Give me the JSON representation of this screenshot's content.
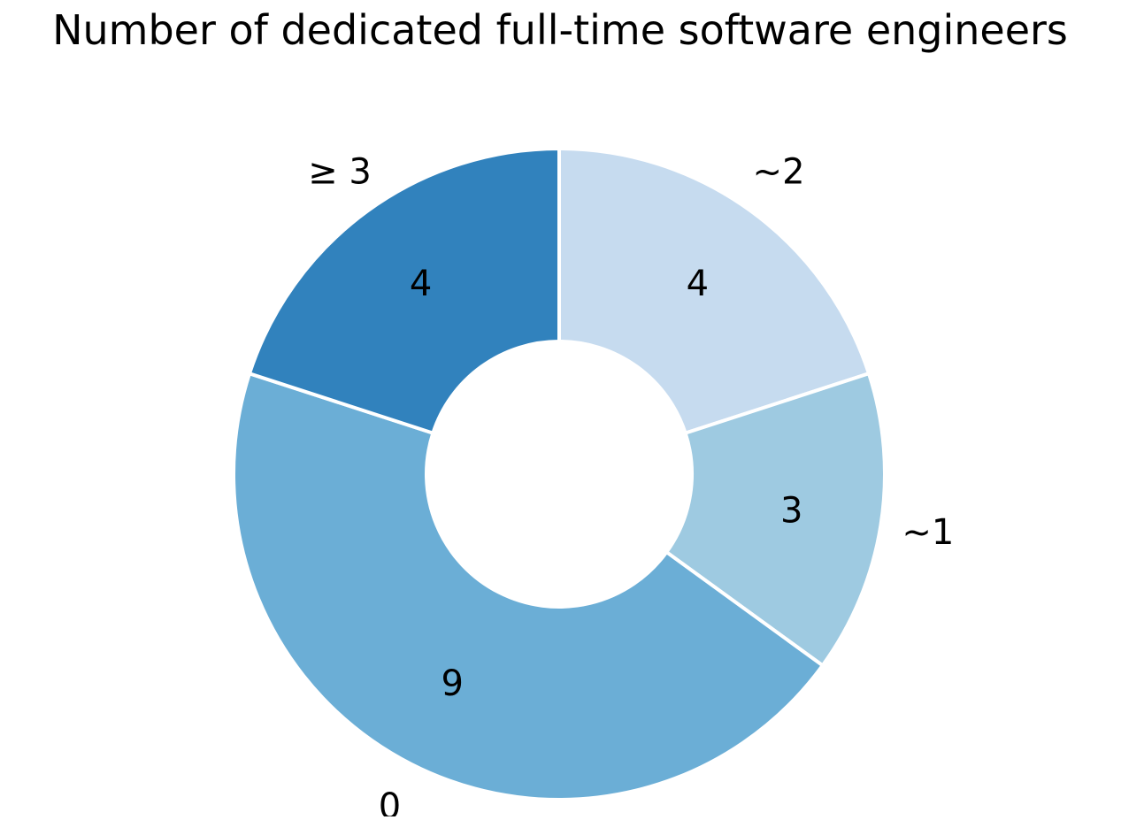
{
  "chart_data": {
    "type": "pie",
    "variant": "donut",
    "title": "Number of dedicated full-time software engineers",
    "categories": [
      "~2",
      "~1",
      "0",
      "≥ 3"
    ],
    "values": [
      4,
      3,
      9,
      4
    ],
    "value_labels": [
      "4",
      "3",
      "9",
      "4"
    ],
    "colors": [
      "#c6dbef",
      "#9ecae1",
      "#6baed6",
      "#3182bd"
    ],
    "start_angle_deg": 90,
    "direction": "clockwise",
    "legend": "none"
  }
}
